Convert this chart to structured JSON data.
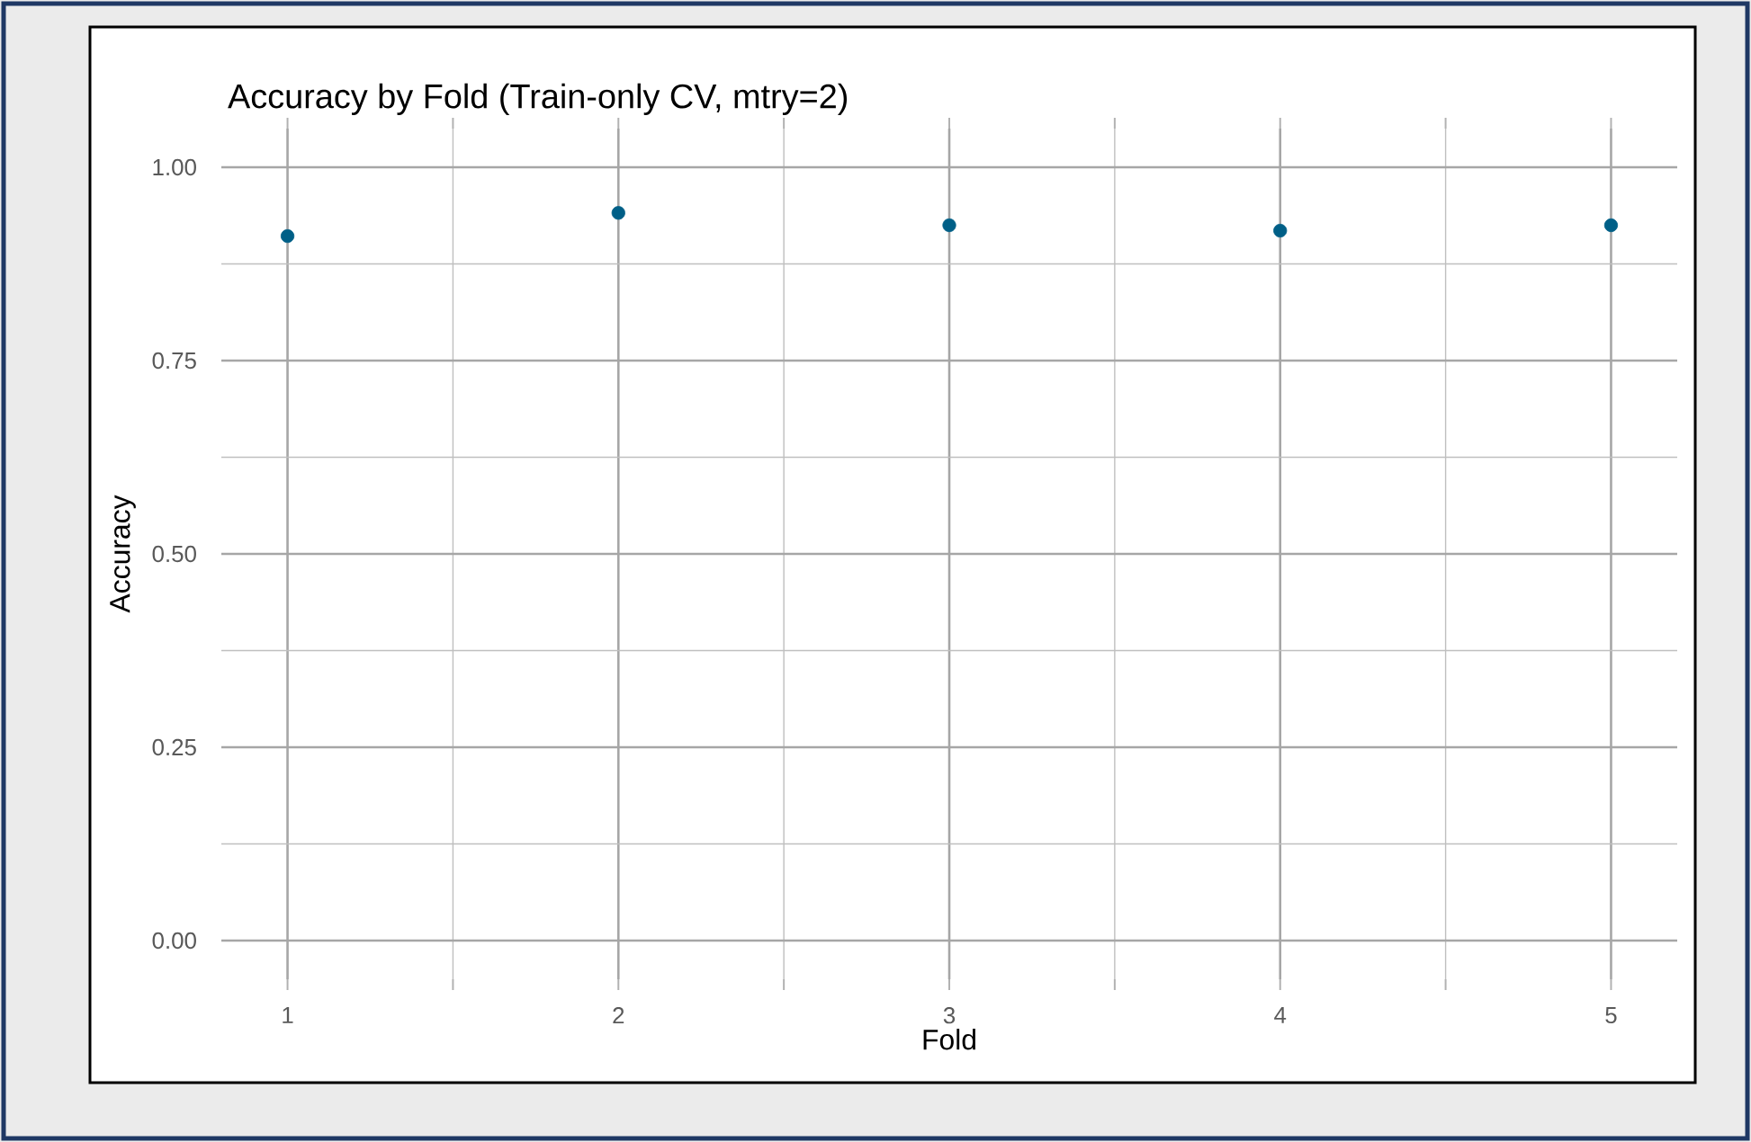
{
  "chart_data": {
    "type": "scatter",
    "title": "Accuracy by Fold (Train-only CV, mtry=2)",
    "xlabel": "Fold",
    "ylabel": "Accuracy",
    "x": [
      1,
      2,
      3,
      4,
      5
    ],
    "series": [
      {
        "color": "#005f87",
        "values": [
          0.911,
          0.941,
          0.925,
          0.918,
          0.925
        ]
      }
    ],
    "xlim": [
      0.8,
      5.2
    ],
    "ylim": [
      -0.05,
      1.05
    ],
    "xticks": [
      1,
      2,
      3,
      4,
      5
    ],
    "yticks": [
      {
        "value": 0,
        "label": "0.00"
      },
      {
        "value": 0.25,
        "label": "0.25"
      },
      {
        "value": 0.5,
        "label": "0.50"
      },
      {
        "value": 0.75,
        "label": "0.75"
      },
      {
        "value": 1,
        "label": "1.00"
      }
    ],
    "grid": true,
    "marker": "circle"
  }
}
